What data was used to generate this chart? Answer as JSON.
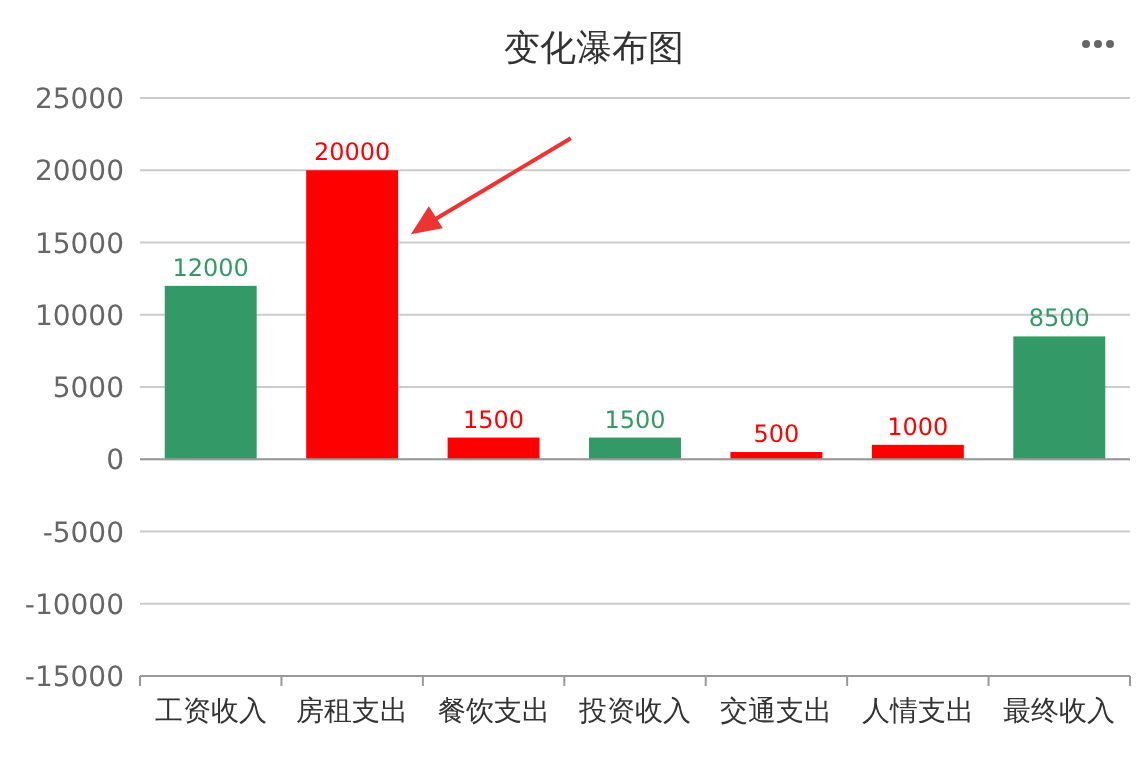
{
  "chart_data": {
    "type": "bar",
    "title": "变化瀑布图",
    "categories": [
      "工资收入",
      "房租支出",
      "餐饮支出",
      "投资收入",
      "交通支出",
      "人情支出",
      "最终收入"
    ],
    "values": [
      12000,
      20000,
      1500,
      1500,
      500,
      1000,
      8500
    ],
    "colors": [
      "#339966",
      "#ff0000",
      "#ff0000",
      "#339966",
      "#ff0000",
      "#ff0000",
      "#339966"
    ],
    "ylim": [
      -15000,
      25000
    ],
    "yticks": [
      -15000,
      -10000,
      -5000,
      0,
      5000,
      10000,
      15000,
      20000,
      25000
    ],
    "grid": "y",
    "data_labels": true
  }
}
